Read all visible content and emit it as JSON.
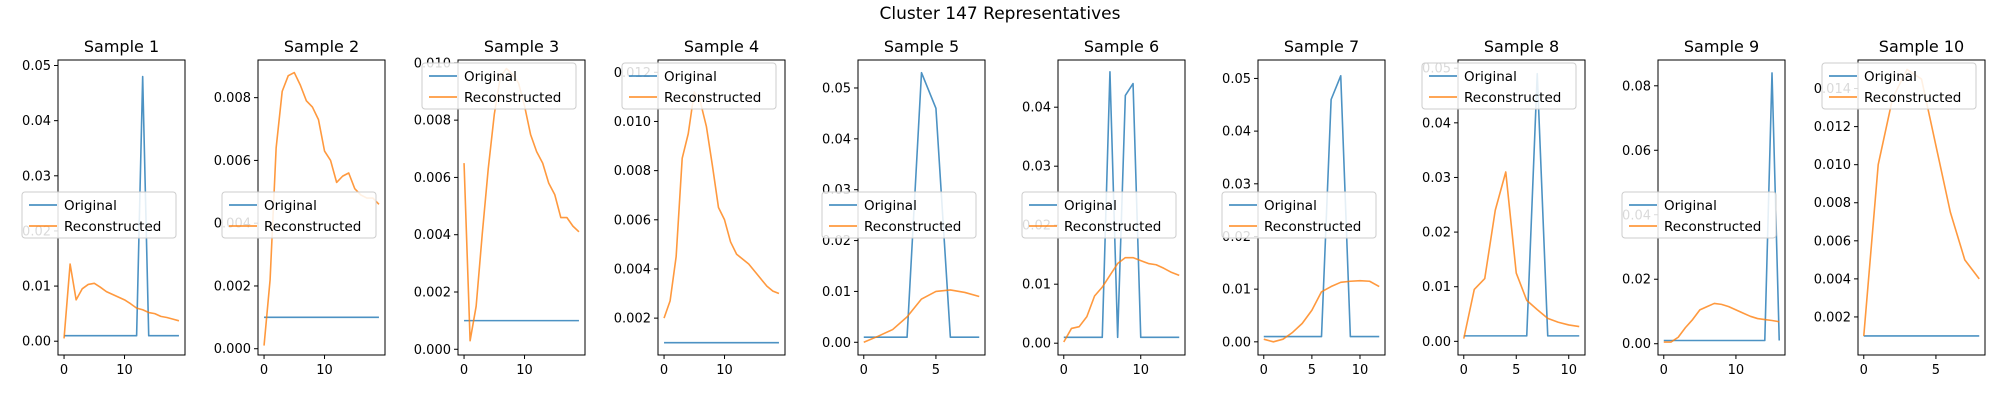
{
  "figure": {
    "title": "Cluster 147 Representatives"
  },
  "chart_data": [
    {
      "type": "line",
      "title": "Sample 1",
      "xlim": [
        -1,
        20
      ],
      "ylim": [
        -0.0025,
        0.051
      ],
      "xticks": [
        0,
        10
      ],
      "yticks": [
        0.0,
        0.01,
        0.02,
        0.03,
        0.04,
        0.05
      ],
      "ytick_labels": [
        "0.00",
        "0.01",
        "0.02",
        "0.03",
        "0.04",
        "0.05"
      ],
      "legend": "center-left",
      "series": [
        {
          "name": "Original",
          "color": "#1f77b4",
          "x": [
            0,
            1,
            2,
            3,
            4,
            5,
            6,
            7,
            8,
            9,
            10,
            11,
            12,
            13,
            14,
            15,
            16,
            17,
            18,
            19
          ],
          "y": [
            0.001,
            0.001,
            0.001,
            0.001,
            0.001,
            0.001,
            0.001,
            0.001,
            0.001,
            0.001,
            0.001,
            0.001,
            0.001,
            0.048,
            0.001,
            0.001,
            0.001,
            0.001,
            0.001,
            0.001
          ]
        },
        {
          "name": "Reconstructed",
          "color": "#ff7f0e",
          "x": [
            0,
            1,
            2,
            3,
            4,
            5,
            6,
            7,
            8,
            9,
            10,
            11,
            12,
            13,
            14,
            15,
            16,
            17,
            18,
            19
          ],
          "y": [
            0.0005,
            0.014,
            0.0075,
            0.0095,
            0.0103,
            0.0105,
            0.0098,
            0.009,
            0.0085,
            0.008,
            0.0075,
            0.0068,
            0.006,
            0.0057,
            0.0052,
            0.005,
            0.0045,
            0.0043,
            0.004,
            0.0037
          ]
        }
      ]
    },
    {
      "type": "line",
      "title": "Sample 2",
      "xlim": [
        -1,
        20
      ],
      "ylim": [
        -0.0002,
        0.0092
      ],
      "xticks": [
        0,
        10
      ],
      "yticks": [
        0.0,
        0.002,
        0.004,
        0.006,
        0.008
      ],
      "ytick_labels": [
        "0.000",
        "0.002",
        "0.004",
        "0.006",
        "0.008"
      ],
      "legend": "center-left",
      "series": [
        {
          "name": "Original",
          "color": "#1f77b4",
          "x": [
            0,
            1,
            2,
            3,
            4,
            5,
            6,
            7,
            8,
            9,
            10,
            11,
            12,
            13,
            14,
            15,
            16,
            17,
            18,
            19
          ],
          "y": [
            0.001,
            0.001,
            0.001,
            0.001,
            0.001,
            0.001,
            0.001,
            0.001,
            0.001,
            0.001,
            0.001,
            0.001,
            0.001,
            0.001,
            0.001,
            0.001,
            0.001,
            0.001,
            0.001,
            0.001
          ]
        },
        {
          "name": "Reconstructed",
          "color": "#ff7f0e",
          "x": [
            0,
            1,
            2,
            3,
            4,
            5,
            6,
            7,
            8,
            9,
            10,
            11,
            12,
            13,
            14,
            15,
            16,
            17,
            18,
            19
          ],
          "y": [
            0.0001,
            0.0022,
            0.0064,
            0.0082,
            0.0087,
            0.0088,
            0.0084,
            0.0079,
            0.0077,
            0.0073,
            0.0063,
            0.006,
            0.0053,
            0.0055,
            0.0056,
            0.0051,
            0.0049,
            0.0048,
            0.0048,
            0.0046
          ]
        }
      ]
    },
    {
      "type": "line",
      "title": "Sample 3",
      "xlim": [
        -1,
        20
      ],
      "ylim": [
        -0.0002,
        0.0101
      ],
      "xticks": [
        0,
        10
      ],
      "yticks": [
        0.0,
        0.002,
        0.004,
        0.006,
        0.008,
        0.01
      ],
      "ytick_labels": [
        "0.000",
        "0.002",
        "0.004",
        "0.006",
        "0.008",
        "0.010"
      ],
      "legend": "upper-left",
      "series": [
        {
          "name": "Original",
          "color": "#1f77b4",
          "x": [
            0,
            1,
            2,
            3,
            4,
            5,
            6,
            7,
            8,
            9,
            10,
            11,
            12,
            13,
            14,
            15,
            16,
            17,
            18,
            19
          ],
          "y": [
            0.001,
            0.001,
            0.001,
            0.001,
            0.001,
            0.001,
            0.001,
            0.001,
            0.001,
            0.001,
            0.001,
            0.001,
            0.001,
            0.001,
            0.001,
            0.001,
            0.001,
            0.001,
            0.001,
            0.001
          ]
        },
        {
          "name": "Reconstructed",
          "color": "#ff7f0e",
          "x": [
            0,
            1,
            2,
            3,
            4,
            5,
            6,
            7,
            8,
            9,
            10,
            11,
            12,
            13,
            14,
            15,
            16,
            17,
            18,
            19
          ],
          "y": [
            0.0065,
            0.0003,
            0.0015,
            0.004,
            0.0063,
            0.0082,
            0.0095,
            0.0098,
            0.0096,
            0.0093,
            0.0085,
            0.0075,
            0.0069,
            0.0065,
            0.0058,
            0.0054,
            0.0046,
            0.0046,
            0.0043,
            0.0041
          ]
        }
      ]
    },
    {
      "type": "line",
      "title": "Sample 4",
      "xlim": [
        -1,
        20
      ],
      "ylim": [
        0.0005,
        0.0125
      ],
      "xticks": [
        0,
        10
      ],
      "yticks": [
        0.002,
        0.004,
        0.006,
        0.008,
        0.01,
        0.012
      ],
      "ytick_labels": [
        "0.002",
        "0.004",
        "0.006",
        "0.008",
        "0.010",
        "0.012"
      ],
      "legend": "upper-left",
      "series": [
        {
          "name": "Original",
          "color": "#1f77b4",
          "x": [
            0,
            1,
            2,
            3,
            4,
            5,
            6,
            7,
            8,
            9,
            10,
            11,
            12,
            13,
            14,
            15,
            16,
            17,
            18,
            19
          ],
          "y": [
            0.001,
            0.001,
            0.001,
            0.001,
            0.001,
            0.001,
            0.001,
            0.001,
            0.001,
            0.001,
            0.001,
            0.001,
            0.001,
            0.001,
            0.001,
            0.001,
            0.001,
            0.001,
            0.001,
            0.001
          ]
        },
        {
          "name": "Reconstructed",
          "color": "#ff7f0e",
          "x": [
            0,
            1,
            2,
            3,
            4,
            5,
            6,
            7,
            8,
            9,
            10,
            11,
            12,
            13,
            14,
            15,
            16,
            17,
            18,
            19
          ],
          "y": [
            0.002,
            0.0027,
            0.0045,
            0.0085,
            0.0095,
            0.0112,
            0.0108,
            0.0098,
            0.0082,
            0.0065,
            0.006,
            0.0051,
            0.0046,
            0.0044,
            0.0042,
            0.0039,
            0.0036,
            0.0033,
            0.0031,
            0.003
          ]
        }
      ]
    },
    {
      "type": "line",
      "title": "Sample 5",
      "xlim": [
        -0.4,
        8.4
      ],
      "ylim": [
        -0.0025,
        0.0555
      ],
      "xticks": [
        0,
        5
      ],
      "yticks": [
        0.0,
        0.01,
        0.02,
        0.03,
        0.04,
        0.05
      ],
      "ytick_labels": [
        "0.00",
        "0.01",
        "0.02",
        "0.03",
        "0.04",
        "0.05"
      ],
      "legend": "center-left",
      "series": [
        {
          "name": "Original",
          "color": "#1f77b4",
          "x": [
            0,
            1,
            2,
            3,
            4,
            5,
            6,
            7,
            8
          ],
          "y": [
            0.001,
            0.001,
            0.001,
            0.001,
            0.053,
            0.046,
            0.001,
            0.001,
            0.001
          ]
        },
        {
          "name": "Reconstructed",
          "color": "#ff7f0e",
          "x": [
            0,
            1,
            2,
            3,
            4,
            5,
            6,
            7,
            8
          ],
          "y": [
            0.0,
            0.0012,
            0.0025,
            0.005,
            0.0085,
            0.01,
            0.0103,
            0.0098,
            0.009
          ]
        }
      ]
    },
    {
      "type": "line",
      "title": "Sample 6",
      "xlim": [
        -0.75,
        15.75
      ],
      "ylim": [
        -0.002,
        0.048
      ],
      "xticks": [
        0,
        10
      ],
      "yticks": [
        0.0,
        0.01,
        0.02,
        0.03,
        0.04
      ],
      "ytick_labels": [
        "0.00",
        "0.01",
        "0.02",
        "0.03",
        "0.04"
      ],
      "legend": "center-left",
      "series": [
        {
          "name": "Original",
          "color": "#1f77b4",
          "x": [
            0,
            1,
            2,
            3,
            4,
            5,
            6,
            7,
            8,
            9,
            10,
            11,
            12,
            13,
            14,
            15
          ],
          "y": [
            0.001,
            0.001,
            0.001,
            0.001,
            0.001,
            0.001,
            0.046,
            0.001,
            0.042,
            0.044,
            0.001,
            0.001,
            0.001,
            0.001,
            0.001,
            0.001
          ]
        },
        {
          "name": "Reconstructed",
          "color": "#ff7f0e",
          "x": [
            0,
            1,
            2,
            3,
            4,
            5,
            6,
            7,
            8,
            9,
            10,
            11,
            12,
            13,
            14,
            15
          ],
          "y": [
            0.0002,
            0.0025,
            0.0028,
            0.0045,
            0.008,
            0.0095,
            0.0115,
            0.0135,
            0.0145,
            0.0145,
            0.014,
            0.0135,
            0.0133,
            0.0127,
            0.012,
            0.0115
          ]
        }
      ]
    },
    {
      "type": "line",
      "title": "Sample 7",
      "xlim": [
        -0.6,
        12.6
      ],
      "ylim": [
        -0.0025,
        0.0535
      ],
      "xticks": [
        0,
        5,
        10
      ],
      "yticks": [
        0.0,
        0.01,
        0.02,
        0.03,
        0.04,
        0.05
      ],
      "ytick_labels": [
        "0.00",
        "0.01",
        "0.02",
        "0.03",
        "0.04",
        "0.05"
      ],
      "legend": "center-left",
      "series": [
        {
          "name": "Original",
          "color": "#1f77b4",
          "x": [
            0,
            1,
            2,
            3,
            4,
            5,
            6,
            7,
            8,
            9,
            10,
            11,
            12
          ],
          "y": [
            0.001,
            0.001,
            0.001,
            0.001,
            0.001,
            0.001,
            0.001,
            0.046,
            0.0505,
            0.001,
            0.001,
            0.001,
            0.001
          ]
        },
        {
          "name": "Reconstructed",
          "color": "#ff7f0e",
          "x": [
            0,
            1,
            2,
            3,
            4,
            5,
            6,
            7,
            8,
            9,
            10,
            11,
            12
          ],
          "y": [
            0.0005,
            0.0,
            0.0005,
            0.0018,
            0.0035,
            0.006,
            0.0095,
            0.0105,
            0.0113,
            0.0115,
            0.0116,
            0.0115,
            0.0105
          ]
        }
      ]
    },
    {
      "type": "line",
      "title": "Sample 8",
      "xlim": [
        -0.55,
        11.55
      ],
      "ylim": [
        -0.0025,
        0.0515
      ],
      "xticks": [
        0,
        5,
        10
      ],
      "yticks": [
        0.0,
        0.01,
        0.02,
        0.03,
        0.04,
        0.05
      ],
      "ytick_labels": [
        "0.00",
        "0.01",
        "0.02",
        "0.03",
        "0.04",
        "0.05"
      ],
      "legend": "upper-left",
      "series": [
        {
          "name": "Original",
          "color": "#1f77b4",
          "x": [
            0,
            1,
            2,
            3,
            4,
            5,
            6,
            7,
            8,
            9,
            10,
            11
          ],
          "y": [
            0.001,
            0.001,
            0.001,
            0.001,
            0.001,
            0.001,
            0.001,
            0.049,
            0.001,
            0.001,
            0.001,
            0.001
          ]
        },
        {
          "name": "Reconstructed",
          "color": "#ff7f0e",
          "x": [
            0,
            1,
            2,
            3,
            4,
            5,
            6,
            7,
            8,
            9,
            10,
            11
          ],
          "y": [
            0.0005,
            0.0095,
            0.0115,
            0.024,
            0.031,
            0.0125,
            0.0075,
            0.0058,
            0.0042,
            0.0035,
            0.003,
            0.0027
          ]
        }
      ]
    },
    {
      "type": "line",
      "title": "Sample 9",
      "xlim": [
        -0.8,
        16.8
      ],
      "ylim": [
        -0.0035,
        0.088
      ],
      "xticks": [
        0,
        10
      ],
      "yticks": [
        0.0,
        0.02,
        0.04,
        0.06,
        0.08
      ],
      "ytick_labels": [
        "0.00",
        "0.02",
        "0.04",
        "0.06",
        "0.08"
      ],
      "legend": "center-left",
      "series": [
        {
          "name": "Original",
          "color": "#1f77b4",
          "x": [
            0,
            1,
            2,
            3,
            4,
            5,
            6,
            7,
            8,
            9,
            10,
            11,
            12,
            13,
            14,
            15,
            16
          ],
          "y": [
            0.001,
            0.001,
            0.001,
            0.001,
            0.001,
            0.001,
            0.001,
            0.001,
            0.001,
            0.001,
            0.001,
            0.001,
            0.001,
            0.001,
            0.001,
            0.084,
            0.001
          ]
        },
        {
          "name": "Reconstructed",
          "color": "#ff7f0e",
          "x": [
            0,
            1,
            2,
            3,
            4,
            5,
            6,
            7,
            8,
            9,
            10,
            11,
            12,
            13,
            14,
            15,
            16
          ],
          "y": [
            0.0005,
            0.0005,
            0.002,
            0.005,
            0.0075,
            0.0105,
            0.0115,
            0.0125,
            0.0122,
            0.0115,
            0.0105,
            0.0095,
            0.0085,
            0.0078,
            0.0075,
            0.0072,
            0.0068
          ]
        }
      ]
    },
    {
      "type": "line",
      "title": "Sample 10",
      "xlim": [
        -0.4,
        8.4
      ],
      "ylim": [
        0.0,
        0.0155
      ],
      "xticks": [
        0,
        5
      ],
      "yticks": [
        0.002,
        0.004,
        0.006,
        0.008,
        0.01,
        0.012,
        0.014
      ],
      "ytick_labels": [
        "0.002",
        "0.004",
        "0.006",
        "0.008",
        "0.010",
        "0.012",
        "0.014"
      ],
      "legend": "upper-left",
      "series": [
        {
          "name": "Original",
          "color": "#1f77b4",
          "x": [
            0,
            1,
            2,
            3,
            4,
            5,
            6,
            7,
            8
          ],
          "y": [
            0.001,
            0.001,
            0.001,
            0.001,
            0.001,
            0.001,
            0.001,
            0.001,
            0.001
          ]
        },
        {
          "name": "Reconstructed",
          "color": "#ff7f0e",
          "x": [
            0,
            1,
            2,
            3,
            4,
            5,
            6,
            7,
            8
          ],
          "y": [
            0.001,
            0.01,
            0.0135,
            0.015,
            0.0145,
            0.011,
            0.0075,
            0.005,
            0.004
          ]
        }
      ]
    }
  ]
}
